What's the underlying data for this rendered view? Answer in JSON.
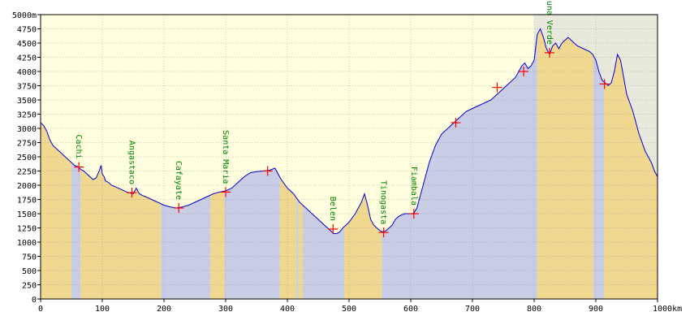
{
  "chart_data": {
    "type": "area",
    "x_unit": "km",
    "y_unit": "m",
    "xlim": [
      0,
      1000
    ],
    "ylim": [
      0,
      5000
    ],
    "x_ticks": [
      0,
      100,
      200,
      300,
      400,
      500,
      600,
      700,
      800,
      900,
      1000
    ],
    "x_tick_labels": [
      "0",
      "100",
      "200",
      "300",
      "400",
      "500",
      "600",
      "700",
      "800",
      "900",
      "1000km"
    ],
    "y_ticks": [
      0,
      250,
      500,
      750,
      1000,
      1250,
      1500,
      1750,
      2000,
      2250,
      2500,
      2750,
      3000,
      3250,
      3500,
      3750,
      4000,
      4250,
      4500,
      4750,
      5000
    ],
    "y_tick_labels": [
      "0",
      "250",
      "500",
      "750",
      "1000",
      "1250",
      "1500",
      "1750",
      "2000",
      "2250",
      "2500",
      "2750",
      "3000",
      "3250",
      "3500",
      "3750",
      "4000",
      "4250",
      "4500",
      "4750",
      "5000m"
    ],
    "grid": true,
    "colors": {
      "sky": "#ffffe0",
      "sky_high": "#e8e8dc",
      "ground_a": "#f0d890",
      "ground_b": "#c8cce4",
      "line": "#0000cc",
      "marker": "#ff0000",
      "label": "#008000"
    },
    "sky_high_from_km": 800,
    "profile": {
      "x": [
        0,
        5,
        10,
        15,
        20,
        25,
        30,
        40,
        50,
        55,
        60,
        65,
        70,
        75,
        80,
        85,
        90,
        95,
        98,
        100,
        103,
        105,
        110,
        115,
        120,
        130,
        140,
        150,
        155,
        160,
        165,
        170,
        180,
        190,
        200,
        210,
        220,
        230,
        240,
        250,
        260,
        270,
        280,
        290,
        300,
        310,
        320,
        330,
        340,
        350,
        360,
        370,
        375,
        380,
        385,
        390,
        400,
        410,
        420,
        430,
        440,
        450,
        460,
        470,
        475,
        480,
        485,
        490,
        500,
        510,
        520,
        525,
        530,
        535,
        540,
        545,
        550,
        555,
        560,
        565,
        570,
        575,
        580,
        585,
        590,
        600,
        605,
        610,
        620,
        630,
        640,
        650,
        660,
        670,
        680,
        690,
        700,
        710,
        720,
        730,
        740,
        750,
        760,
        770,
        775,
        780,
        785,
        790,
        795,
        800,
        805,
        810,
        815,
        820,
        825,
        830,
        835,
        840,
        845,
        850,
        855,
        860,
        870,
        880,
        890,
        895,
        900,
        905,
        910,
        915,
        920,
        925,
        930,
        935,
        940,
        945,
        950,
        960,
        970,
        980,
        985,
        990,
        995,
        1000
      ],
      "y": [
        3100,
        3050,
        2950,
        2800,
        2700,
        2650,
        2600,
        2500,
        2400,
        2350,
        2330,
        2280,
        2250,
        2200,
        2150,
        2100,
        2130,
        2250,
        2350,
        2200,
        2150,
        2080,
        2050,
        2000,
        1980,
        1930,
        1880,
        1850,
        1950,
        1850,
        1820,
        1800,
        1750,
        1700,
        1650,
        1620,
        1600,
        1620,
        1650,
        1700,
        1750,
        1800,
        1850,
        1880,
        1900,
        1950,
        2050,
        2150,
        2220,
        2240,
        2250,
        2260,
        2280,
        2300,
        2200,
        2100,
        1950,
        1850,
        1700,
        1600,
        1500,
        1400,
        1300,
        1200,
        1150,
        1150,
        1180,
        1250,
        1350,
        1500,
        1700,
        1850,
        1650,
        1400,
        1300,
        1250,
        1200,
        1180,
        1200,
        1250,
        1300,
        1400,
        1450,
        1480,
        1500,
        1500,
        1510,
        1600,
        2000,
        2400,
        2700,
        2900,
        3000,
        3100,
        3200,
        3300,
        3350,
        3400,
        3450,
        3500,
        3600,
        3700,
        3800,
        3900,
        4000,
        4100,
        4150,
        4050,
        4100,
        4200,
        4650,
        4750,
        4600,
        4400,
        4300,
        4450,
        4500,
        4400,
        4500,
        4550,
        4600,
        4550,
        4450,
        4400,
        4350,
        4300,
        4200,
        4000,
        3850,
        3800,
        3750,
        3800,
        4000,
        4300,
        4200,
        3900,
        3600,
        3300,
        2900,
        2600,
        2500,
        2400,
        2250,
        2150
      ]
    },
    "ground_bands": [
      {
        "from": 0,
        "to": 50,
        "tone": "a"
      },
      {
        "from": 50,
        "to": 65,
        "tone": "b"
      },
      {
        "from": 65,
        "to": 195,
        "tone": "a"
      },
      {
        "from": 195,
        "to": 275,
        "tone": "b"
      },
      {
        "from": 275,
        "to": 298,
        "tone": "a"
      },
      {
        "from": 298,
        "to": 388,
        "tone": "b"
      },
      {
        "from": 388,
        "to": 415,
        "tone": "a"
      },
      {
        "from": 415,
        "to": 418,
        "tone": "b"
      },
      {
        "from": 418,
        "to": 425,
        "tone": "a"
      },
      {
        "from": 425,
        "to": 492,
        "tone": "b"
      },
      {
        "from": 492,
        "to": 553,
        "tone": "a"
      },
      {
        "from": 553,
        "to": 805,
        "tone": "b"
      },
      {
        "from": 805,
        "to": 896,
        "tone": "a"
      },
      {
        "from": 896,
        "to": 913,
        "tone": "b"
      },
      {
        "from": 913,
        "to": 1000,
        "tone": "a"
      }
    ],
    "places": [
      {
        "name": "Cachi",
        "km": 62,
        "alt": 2320,
        "label": true
      },
      {
        "name": "Angastaco",
        "km": 148,
        "alt": 1870,
        "label": true
      },
      {
        "name": "Cafayate",
        "km": 224,
        "alt": 1600,
        "label": true
      },
      {
        "name": "Santa Maria",
        "km": 300,
        "alt": 1880,
        "label": true
      },
      {
        "name": "",
        "km": 368,
        "alt": 2250,
        "label": false
      },
      {
        "name": "Belen",
        "km": 474,
        "alt": 1230,
        "label": true
      },
      {
        "name": "Tinogasta",
        "km": 556,
        "alt": 1170,
        "label": true
      },
      {
        "name": "Fiambala",
        "km": 605,
        "alt": 1500,
        "label": true
      },
      {
        "name": "",
        "km": 673,
        "alt": 3100,
        "label": false
      },
      {
        "name": "",
        "km": 740,
        "alt": 3720,
        "label": false
      },
      {
        "name": "",
        "km": 783,
        "alt": 4000,
        "label": false
      },
      {
        "name": "Laguna Verde",
        "km": 825,
        "alt": 4330,
        "label": true
      },
      {
        "name": "",
        "km": 914,
        "alt": 3780,
        "label": false
      }
    ]
  }
}
